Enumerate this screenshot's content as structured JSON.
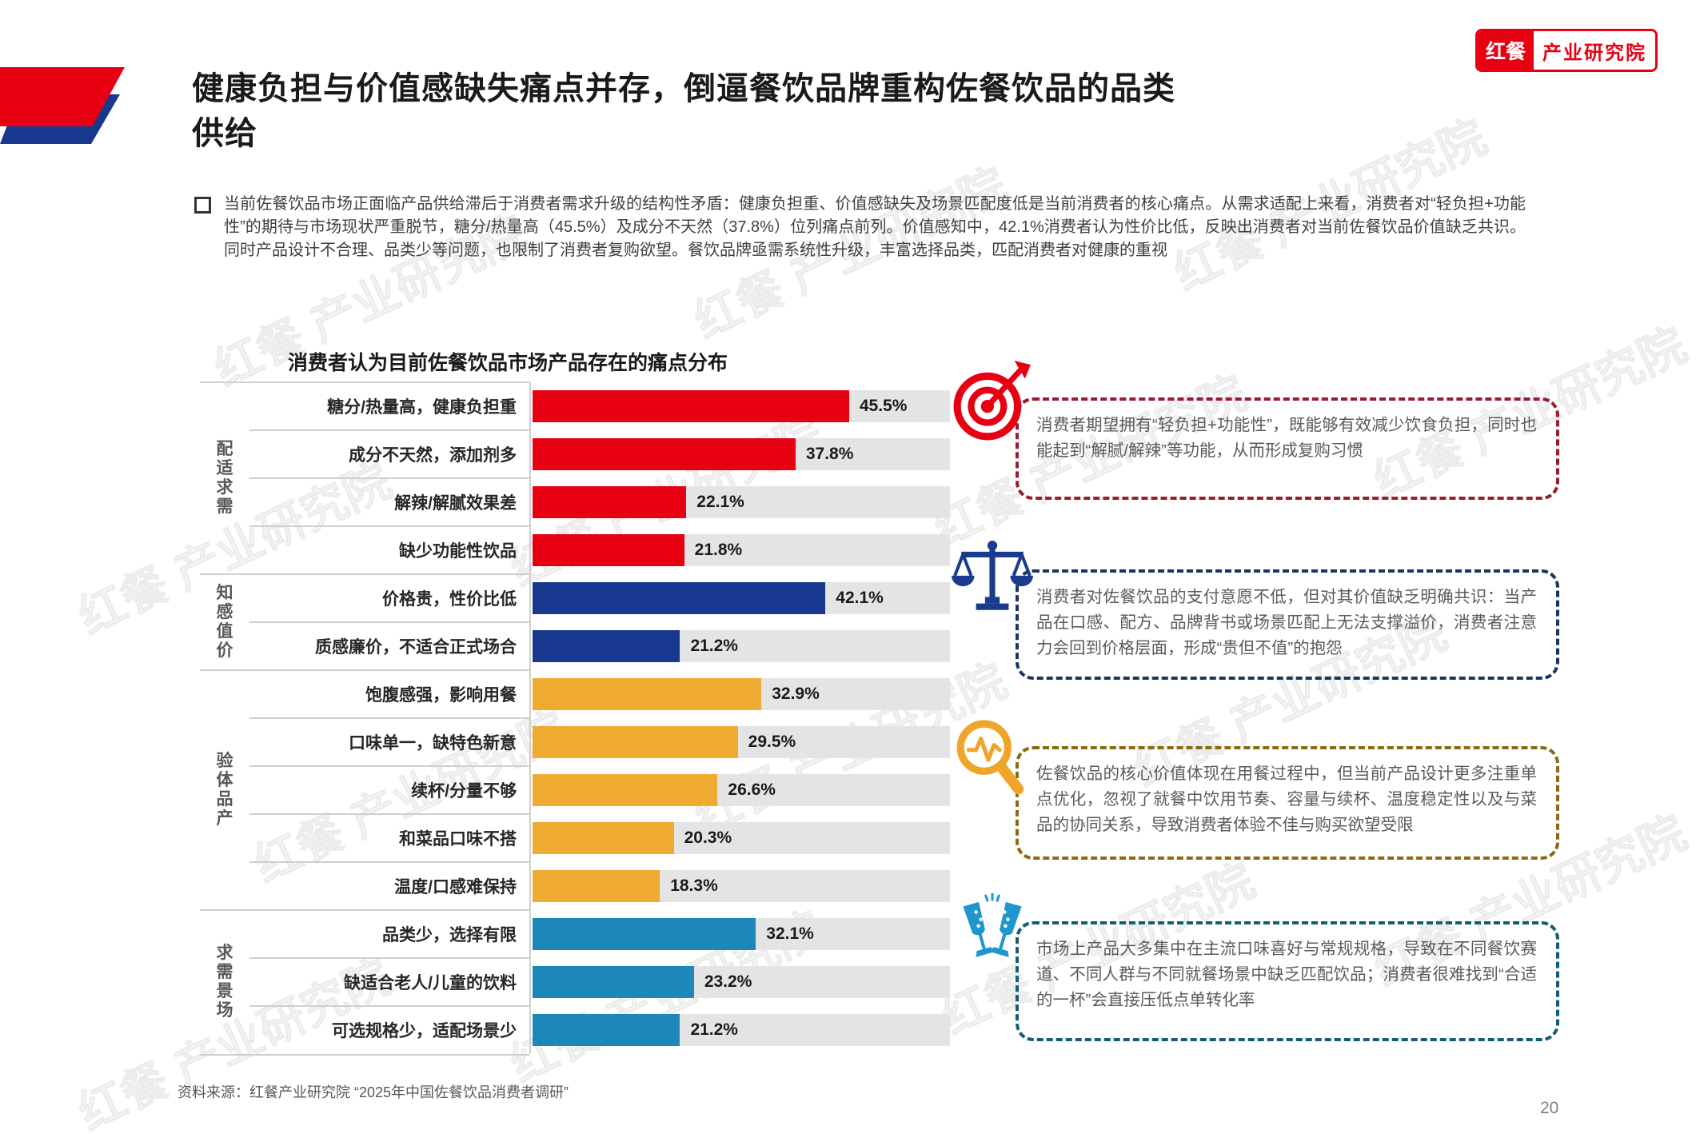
{
  "header": {
    "title": "健康负担与价值感缺失痛点并存，倒逼餐饮品牌重构佐餐饮品的品类供给",
    "logo": {
      "brand": "红餐",
      "division": "产业研究院"
    }
  },
  "intro": {
    "text": "当前佐餐饮品市场正面临产品供给滞后于消费者需求升级的结构性矛盾：健康负担重、价值感缺失及场景匹配度低是当前消费者的核心痛点。从需求适配上来看，消费者对“轻负担+功能性”的期待与市场现状严重脱节，糖分/热量高（45.5%）及成分不天然（37.8%）位列痛点前列。价值感知中，42.1%消费者认为性价比低，反映出消费者对当前佐餐饮品价值缺乏共识。同时产品设计不合理、品类少等问题，也限制了消费者复购欲望。餐饮品牌亟需系统性升级，丰富选择品类，匹配消费者对健康的重视"
  },
  "chart_data": {
    "type": "bar",
    "orientation": "horizontal",
    "title": "消费者认为目前佐餐饮品市场产品存在的痛点分布",
    "unit": "%",
    "xlim": [
      0,
      60
    ],
    "grid": false,
    "groups": [
      {
        "name": "需求适配",
        "color": "#e60012",
        "items": [
          {
            "label": "糖分/热量高，健康负担重",
            "value": 45.5
          },
          {
            "label": "成分不天然，添加剂多",
            "value": 37.8
          },
          {
            "label": "解辣/解腻效果差",
            "value": 22.1
          },
          {
            "label": "缺少功能性饮品",
            "value": 21.8
          }
        ]
      },
      {
        "name": "价值感知",
        "color": "#17388e",
        "items": [
          {
            "label": "价格贵，性价比低",
            "value": 42.1
          },
          {
            "label": "质感廉价，不适合正式场合",
            "value": 21.2
          }
        ]
      },
      {
        "name": "产品体验",
        "color": "#efaa32",
        "items": [
          {
            "label": "饱腹感强，影响用餐",
            "value": 32.9
          },
          {
            "label": "口味单一，缺特色新意",
            "value": 29.5
          },
          {
            "label": "续杯/分量不够",
            "value": 26.6
          },
          {
            "label": "和菜品口味不搭",
            "value": 20.3
          },
          {
            "label": "温度/口感难保持",
            "value": 18.3
          }
        ]
      },
      {
        "name": "场景需求",
        "color": "#1d87ba",
        "items": [
          {
            "label": "品类少，选择有限",
            "value": 32.1
          },
          {
            "label": "缺适合老人/儿童的饮料",
            "value": 23.2
          },
          {
            "label": "可选规格少，适配场景少",
            "value": 21.2
          }
        ]
      }
    ]
  },
  "callouts": [
    {
      "icon": "dart-target-icon",
      "border_color": "#9b1b2f",
      "icon_color": "#e60012",
      "text": "消费者期望拥有“轻负担+功能性”，既能够有效减少饮食负担，同时也能起到“解腻/解辣”等功能，从而形成复购习惯"
    },
    {
      "icon": "balance-scale-icon",
      "border_color": "#1a365e",
      "icon_color": "#1b3c8e",
      "text": "消费者对佐餐饮品的支付意愿不低，但对其价值缺乏明确共识：当产品在口感、配方、品牌背书或场景匹配上无法支撑溢价，消费者注意力会回到价格层面，形成“贵但不值”的抱怨"
    },
    {
      "icon": "magnifier-pulse-icon",
      "border_color": "#8c6a14",
      "icon_color": "#f0a42a",
      "text": "佐餐饮品的核心价值体现在用餐过程中，但当前产品设计更多注重单点优化，忽视了就餐中饮用节奏、容量与续杯、温度稳定性以及与菜品的协同关系，导致消费者体验不佳与购买欲望受限"
    },
    {
      "icon": "champagne-toast-icon",
      "border_color": "#155d73",
      "icon_color": "#1f97cd",
      "text": "市场上产品大多集中在主流口味喜好与常规规格，导致在不同餐饮赛道、不同人群与不同就餐场景中缺乏匹配饮品；消费者很难找到“合适的一杯”会直接压低点单转化率"
    }
  ],
  "footer": {
    "source": "资料来源：红餐产业研究院 “2025年中国佐餐饮品消费者调研”",
    "page_number": "20"
  },
  "watermark": {
    "text": "红餐 产业研究院"
  }
}
